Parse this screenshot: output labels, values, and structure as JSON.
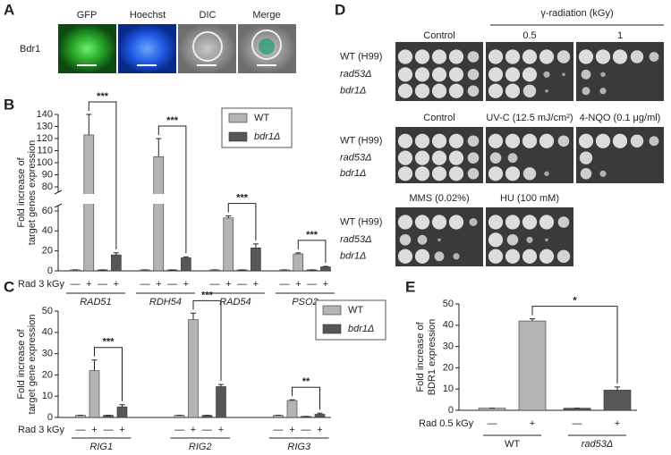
{
  "panel_labels": [
    "A",
    "B",
    "C",
    "D",
    "E"
  ],
  "microscopy": {
    "columns": [
      "GFP",
      "Hoechst",
      "DIC",
      "Merge"
    ],
    "row": "Bdr1"
  },
  "spot_assay": {
    "header": "γ-radiation (kGy)",
    "blocks": [
      {
        "columns": [
          "Control",
          "0.5",
          "1"
        ],
        "rows": [
          "WT (H99)",
          "rad53Δ",
          "bdr1Δ"
        ]
      },
      {
        "columns": [
          "Control",
          "UV-C (12.5 mJ/cm²)",
          "4-NQO (0.1 μg/ml)"
        ],
        "rows": [
          "WT (H99)",
          "rad53Δ",
          "bdr1Δ"
        ]
      },
      {
        "columns": [
          "MMS (0.02%)",
          "HU (100 mM)"
        ],
        "rows": [
          "WT (H99)",
          "rad53Δ",
          "bdr1Δ"
        ]
      }
    ]
  },
  "chart_data": [
    {
      "type": "bar",
      "ylabel": [
        "Fold increase of",
        "target genes expression"
      ],
      "categories": [
        "RAD51",
        "RDH54",
        "RAD54",
        "PSO2"
      ],
      "treatment_labels": [
        "—",
        "+"
      ],
      "treatment_name": "Rad 3 kGy",
      "series": [
        {
          "name": "WT",
          "color": "#b4b4b4",
          "values": [
            [
              1,
              123
            ],
            [
              1,
              105
            ],
            [
              1,
              53
            ],
            [
              1,
              17
            ]
          ],
          "errors": [
            [
              0,
              17
            ],
            [
              0,
              15
            ],
            [
              0,
              2
            ],
            [
              0,
              1
            ]
          ]
        },
        {
          "name": "bdr1Δ",
          "color": "#575757",
          "values": [
            [
              1,
              16
            ],
            [
              1,
              13
            ],
            [
              1,
              23
            ],
            [
              1,
              4
            ]
          ],
          "errors": [
            [
              0,
              2
            ],
            [
              0,
              1
            ],
            [
              0,
              4
            ],
            [
              0,
              0.5
            ]
          ]
        }
      ],
      "significance": [
        "***",
        "***",
        "***",
        "***"
      ],
      "ylim": [
        0,
        140
      ],
      "axis_break": [
        60,
        80
      ],
      "yticks": [
        0,
        20,
        40,
        60,
        80,
        90,
        100,
        110,
        120,
        130,
        140
      ]
    },
    {
      "type": "bar",
      "ylabel": [
        "Fold increase of",
        "target gene expression"
      ],
      "categories": [
        "RIG1",
        "RIG2",
        "RIG3"
      ],
      "treatment_labels": [
        "—",
        "+"
      ],
      "treatment_name": "Rad 3 kGy",
      "series": [
        {
          "name": "WT",
          "color": "#b4b4b4",
          "values": [
            [
              1,
              22
            ],
            [
              1,
              46
            ],
            [
              1,
              8
            ]
          ],
          "errors": [
            [
              0,
              5
            ],
            [
              0,
              3
            ],
            [
              0,
              0.3
            ]
          ]
        },
        {
          "name": "bdr1Δ",
          "color": "#575757",
          "values": [
            [
              1,
              5
            ],
            [
              1,
              14.5
            ],
            [
              0.5,
              1.5
            ]
          ],
          "errors": [
            [
              0,
              1
            ],
            [
              0,
              1
            ],
            [
              0,
              0.5
            ]
          ]
        }
      ],
      "significance": [
        "***",
        "***",
        "**"
      ],
      "ylim": [
        0,
        50
      ],
      "yticks": [
        0,
        10,
        20,
        30,
        40,
        50
      ]
    },
    {
      "type": "bar",
      "ylabel": [
        "Fold increase of",
        "BDR1 expression"
      ],
      "categories": [
        "WT",
        "rad53Δ"
      ],
      "treatment_labels": [
        "—",
        "+"
      ],
      "treatment_name": "Rad 0.5 kGy",
      "colors": [
        "#b4b4b4",
        "#575757"
      ],
      "values": [
        [
          1,
          42
        ],
        [
          1,
          9.5
        ]
      ],
      "errors": [
        [
          0,
          1
        ],
        [
          0,
          1.5
        ]
      ],
      "significance": "*",
      "ylim": [
        0,
        50
      ],
      "yticks": [
        0,
        10,
        20,
        30,
        40,
        50
      ]
    }
  ]
}
